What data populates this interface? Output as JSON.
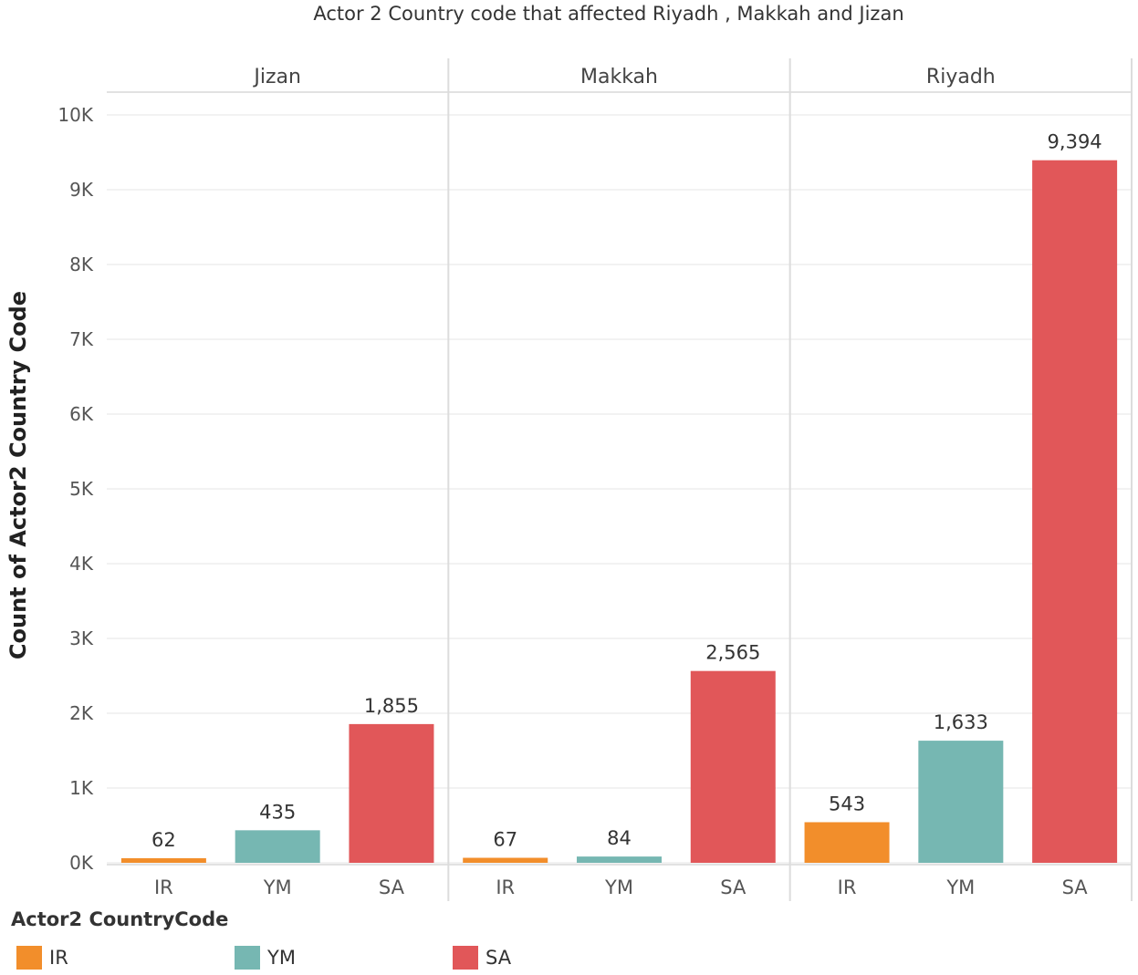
{
  "chart_data": {
    "type": "bar",
    "title": "Actor 2 Country code that affected Riyadh , Makkah and Jizan",
    "ylabel": "Count of Actor2 Country Code",
    "ylim": [
      0,
      10000
    ],
    "yticks": [
      0,
      1000,
      2000,
      3000,
      4000,
      5000,
      6000,
      7000,
      8000,
      9000,
      10000
    ],
    "ytick_labels": [
      "0K",
      "1K",
      "2K",
      "3K",
      "4K",
      "5K",
      "6K",
      "7K",
      "8K",
      "9K",
      "10K"
    ],
    "categories": [
      "IR",
      "YM",
      "SA"
    ],
    "panels": [
      {
        "name": "Jizan",
        "values": [
          62,
          435,
          1855
        ],
        "labels": [
          "62",
          "435",
          "1,855"
        ]
      },
      {
        "name": "Makkah",
        "values": [
          67,
          84,
          2565
        ],
        "labels": [
          "67",
          "84",
          "2,565"
        ]
      },
      {
        "name": "Riyadh",
        "values": [
          543,
          1633,
          9394
        ],
        "labels": [
          "543",
          "1,633",
          "9,394"
        ]
      }
    ],
    "colors": {
      "IR": "#f28e2b",
      "YM": "#76b7b2",
      "SA": "#e15759"
    },
    "grid": true,
    "legend": {
      "title": "Actor2 CountryCode",
      "placement": "bottom-left",
      "entries": [
        "IR",
        "YM",
        "SA"
      ]
    }
  }
}
